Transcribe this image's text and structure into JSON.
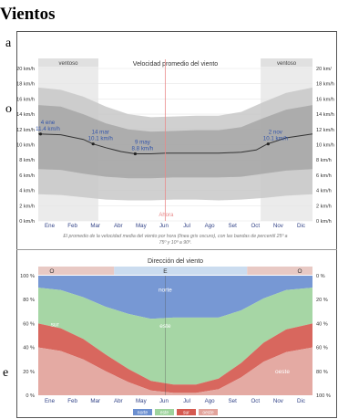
{
  "page": {
    "heading": "Vientos",
    "left_fragments": [
      "a",
      "o",
      "e"
    ]
  },
  "chart_data": [
    {
      "type": "area",
      "title": "Velocidad promedio del viento",
      "caption_lines": [
        "El promedio de la velocidad media del viento por hora (línea gris oscuro), con las bandas de percentil 25º a",
        "75º y 10º a 90º."
      ],
      "y_unit": "km/h",
      "ylim": [
        0,
        20
      ],
      "y_ticks": [
        "0 km/h",
        "2 km/h",
        "4 km/h",
        "6 km/h",
        "8 km/h",
        "10 km/h",
        "12 km/h",
        "14 km/h",
        "16 km/h",
        "18 km/h",
        "20 km/h"
      ],
      "y_ticks_right": [
        "0 km/h",
        "2 km/h",
        "4 km/h",
        "6 km/h",
        "8 km/h",
        "10 km/h",
        "12 km/h",
        "14 km/h",
        "16 km/h",
        "18 km/h",
        "20 km/"
      ],
      "months": [
        "Ene",
        "Feb",
        "Mar",
        "Abr",
        "May",
        "Jun",
        "Jul",
        "Ago",
        "Set",
        "Oct",
        "Nov",
        "Dic"
      ],
      "x_day_range": [
        0,
        365
      ],
      "series": [
        {
          "name": "promedio",
          "x_day": [
            0,
            30,
            60,
            73,
            90,
            110,
            129,
            150,
            170,
            190,
            210,
            240,
            270,
            290,
            305,
            330,
            365
          ],
          "values": [
            11.4,
            11.3,
            10.7,
            10.1,
            9.6,
            9.1,
            8.8,
            8.8,
            8.9,
            8.9,
            8.9,
            8.9,
            9.0,
            9.3,
            10.1,
            10.9,
            11.4
          ]
        }
      ],
      "bands": {
        "p10_90": {
          "x_day": [
            0,
            30,
            60,
            90,
            120,
            150,
            180,
            210,
            240,
            270,
            300,
            330,
            365
          ],
          "low": [
            3.5,
            3.4,
            3.1,
            2.8,
            2.7,
            2.7,
            2.8,
            2.8,
            2.7,
            2.8,
            3.0,
            3.3,
            3.5
          ],
          "high": [
            17.5,
            17.2,
            16.3,
            15.0,
            14.0,
            13.6,
            13.7,
            13.8,
            13.8,
            14.3,
            15.6,
            16.8,
            17.5
          ]
        },
        "p25_75": {
          "x_day": [
            0,
            30,
            60,
            90,
            120,
            150,
            180,
            210,
            240,
            270,
            300,
            330,
            365
          ],
          "low": [
            6.8,
            6.7,
            6.2,
            5.8,
            5.6,
            5.6,
            5.7,
            5.7,
            5.7,
            5.8,
            6.2,
            6.6,
            6.8
          ],
          "high": [
            15.2,
            15.0,
            14.0,
            12.8,
            12.0,
            11.7,
            11.8,
            11.9,
            11.9,
            12.3,
            13.5,
            14.6,
            15.2
          ]
        }
      },
      "shaded_periods": [
        {
          "label": "ventoso",
          "start_day": 0,
          "end_day": 80
        },
        {
          "label": "ventoso",
          "start_day": 296,
          "end_day": 365
        }
      ],
      "annotations": [
        {
          "line1": "4 ene",
          "line2": "11.4 km/h",
          "day": 3,
          "value": 11.4
        },
        {
          "line1": "14 mar",
          "line2": "10.1 km/h",
          "day": 73,
          "value": 10.1
        },
        {
          "line1": "9 may",
          "line2": "8.8 km/h",
          "day": 129,
          "value": 8.8
        },
        {
          "line1": "2 nov",
          "line2": "10.1 km/h",
          "day": 306,
          "value": 10.1
        }
      ],
      "now_marker": {
        "label": "Ahora",
        "day": 169
      },
      "colors": {
        "band_outer": "#c8c8c8",
        "band_inner": "#a8a8a8",
        "mean_line": "#333333",
        "now": "#e98a8a",
        "shade": "#ebebeb",
        "annotation_label": "#3355aa"
      }
    },
    {
      "type": "area",
      "title": "Dirección del viento",
      "stacked_percent": true,
      "y_ticks_left": [
        "0 %",
        "20 %",
        "40 %",
        "60 %",
        "80 %",
        "100 %"
      ],
      "y_ticks_right": [
        "100 %",
        "80 %",
        "60 %",
        "40 %",
        "20 %",
        "0 %"
      ],
      "months": [
        "Ene",
        "Feb",
        "Mar",
        "Abr",
        "May",
        "Jun",
        "Jul",
        "Ago",
        "Set",
        "Oct",
        "Nov",
        "Dic"
      ],
      "x_day_range": [
        0,
        365
      ],
      "x_day": [
        0,
        30,
        60,
        90,
        120,
        150,
        180,
        210,
        240,
        270,
        300,
        330,
        365
      ],
      "series": [
        {
          "name": "oeste",
          "color": "#e2a39b",
          "values": [
            40,
            37,
            30,
            20,
            11,
            4,
            2,
            2,
            5,
            15,
            28,
            36,
            40
          ]
        },
        {
          "name": "sur",
          "color": "#d55a50",
          "values": [
            20,
            19,
            17,
            14,
            11,
            8,
            7,
            7,
            9,
            12,
            16,
            19,
            20
          ]
        },
        {
          "name": "este",
          "color": "#9ed39d",
          "values": [
            30,
            32,
            35,
            40,
            46,
            52,
            56,
            56,
            51,
            44,
            37,
            33,
            30
          ]
        },
        {
          "name": "norte",
          "color": "#6b8fd0",
          "values": [
            10,
            12,
            18,
            26,
            32,
            36,
            35,
            35,
            35,
            29,
            19,
            12,
            10
          ]
        }
      ],
      "top_band": {
        "labels": [
          "O",
          "E",
          "O"
        ],
        "boundaries_day": [
          101,
          278
        ]
      },
      "series_labels": [
        {
          "text": "norte",
          "day": 169,
          "pct_from_top": 12
        },
        {
          "text": "este",
          "day": 169,
          "pct_from_top": 42
        },
        {
          "text": "sur",
          "day": 22,
          "pct_from_top": 41
        },
        {
          "text": "oeste",
          "day": 325,
          "pct_from_top": 80
        }
      ],
      "legend": [
        "norte",
        "este",
        "sur",
        "oeste"
      ],
      "legend_position": "bottom",
      "now_marker_day": 169
    }
  ]
}
